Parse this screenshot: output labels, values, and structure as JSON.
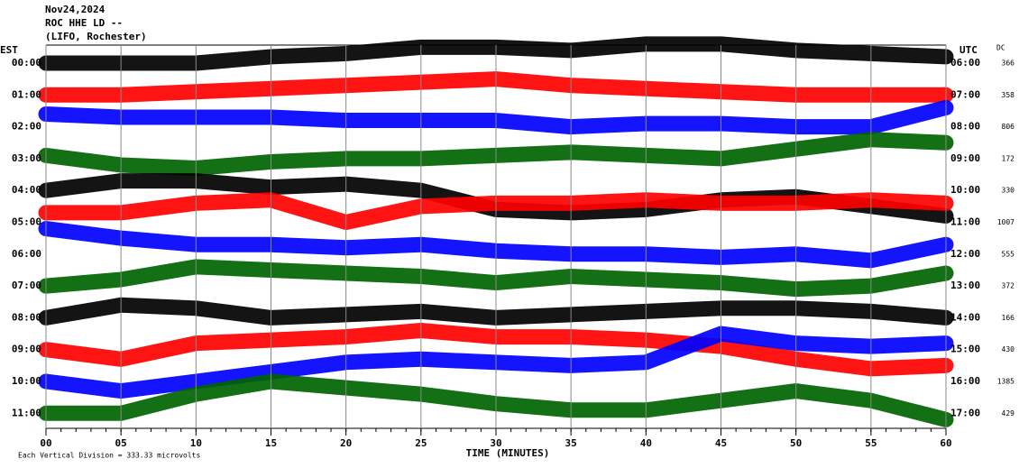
{
  "chart_data": {
    "type": "helicorder",
    "title": [
      "Nov24,2024",
      "ROC HHE LD --",
      "(LIFO, Rochester)"
    ],
    "left_axis_label": "EST",
    "right_axis_label": "UTC",
    "dc_label": "DC",
    "x_label": "TIME (MINUTES)",
    "footer": "Each Vertical Division = 333.33 microvolts",
    "xlim": [
      0,
      60
    ],
    "xticks": [
      {
        "value": 0,
        "label": "00"
      },
      {
        "value": 5,
        "label": "05"
      },
      {
        "value": 10,
        "label": "10"
      },
      {
        "value": 15,
        "label": "15"
      },
      {
        "value": 20,
        "label": "20"
      },
      {
        "value": 25,
        "label": "25"
      },
      {
        "value": 30,
        "label": "30"
      },
      {
        "value": 35,
        "label": "35"
      },
      {
        "value": 40,
        "label": "40"
      },
      {
        "value": 45,
        "label": "45"
      },
      {
        "value": 50,
        "label": "50"
      },
      {
        "value": 55,
        "label": "55"
      },
      {
        "value": 60,
        "label": "60"
      }
    ],
    "grid": true,
    "x": [
      0,
      5,
      10,
      15,
      20,
      25,
      30,
      35,
      40,
      45,
      50,
      55,
      60
    ],
    "rows": [
      {
        "est": "00:00",
        "utc": "06:00",
        "dc": 366,
        "color": "#000000",
        "values": [
          0,
          0,
          0,
          0.2,
          0.3,
          0.5,
          0.5,
          0.4,
          0.6,
          0.6,
          0.4,
          0.3,
          0.2
        ]
      },
      {
        "est": "01:00",
        "utc": "07:00",
        "dc": 358,
        "color": "#ff0000",
        "values": [
          0,
          0,
          0.1,
          0.2,
          0.3,
          0.4,
          0.5,
          0.3,
          0.2,
          0.1,
          0,
          0,
          0
        ]
      },
      {
        "est": "02:00",
        "utc": "08:00",
        "dc": 806,
        "color": "#0000ff",
        "values": [
          0.4,
          0.3,
          0.3,
          0.3,
          0.2,
          0.2,
          0.2,
          0,
          0.1,
          0.1,
          0,
          0,
          0.6
        ]
      },
      {
        "est": "03:00",
        "utc": "09:00",
        "dc": 172,
        "color": "#006400",
        "values": [
          0.1,
          -0.2,
          -0.3,
          -0.1,
          0,
          0,
          0.1,
          0.2,
          0.1,
          0,
          0.3,
          0.6,
          0.5
        ]
      },
      {
        "est": "04:00",
        "utc": "10:00",
        "dc": 330,
        "color": "#000000",
        "values": [
          0,
          0.3,
          0.3,
          0.1,
          0.2,
          0,
          -0.6,
          -0.7,
          -0.6,
          -0.3,
          -0.2,
          -0.5,
          -0.8
        ]
      },
      {
        "est": "05:00",
        "utc": "11:00",
        "dc": 1007,
        "color": "#ff0000",
        "values": [
          0.3,
          0.3,
          0.6,
          0.7,
          0,
          0.5,
          0.6,
          0.6,
          0.7,
          0.6,
          0.6,
          0.7,
          0.6
        ]
      },
      {
        "est": "06:00",
        "utc": "12:00",
        "dc": 555,
        "color": "#0000ff",
        "values": [
          0.8,
          0.5,
          0.3,
          0.3,
          0.2,
          0.3,
          0.1,
          0,
          0,
          -0.1,
          0,
          -0.2,
          0.3
        ]
      },
      {
        "est": "07:00",
        "utc": "13:00",
        "dc": 372,
        "color": "#006400",
        "values": [
          0,
          0.2,
          0.6,
          0.5,
          0.4,
          0.3,
          0.1,
          0.3,
          0.2,
          0.1,
          -0.1,
          0,
          0.4
        ]
      },
      {
        "est": "08:00",
        "utc": "14:00",
        "dc": 166,
        "color": "#000000",
        "values": [
          0,
          0.4,
          0.3,
          0,
          0.1,
          0.2,
          0,
          0.1,
          0.2,
          0.3,
          0.3,
          0.2,
          0
        ]
      },
      {
        "est": "09:00",
        "utc": "15:00",
        "dc": 430,
        "color": "#ff0000",
        "values": [
          0,
          -0.3,
          0.2,
          0.3,
          0.4,
          0.6,
          0.4,
          0.4,
          0.3,
          0.1,
          -0.3,
          -0.6,
          -0.5
        ]
      },
      {
        "est": "10:00",
        "utc": "16:00",
        "dc": 1385,
        "color": "#0000ff",
        "values": [
          0,
          -0.3,
          0,
          0.3,
          0.6,
          0.7,
          0.6,
          0.5,
          0.6,
          1.5,
          1.2,
          1.1,
          1.2
        ]
      },
      {
        "est": "11:00",
        "utc": "17:00",
        "dc": 429,
        "color": "#006400",
        "values": [
          0,
          0,
          0.6,
          1,
          0.8,
          0.6,
          0.3,
          0.1,
          0.1,
          0.4,
          0.7,
          0.4,
          -0.2
        ]
      }
    ]
  }
}
